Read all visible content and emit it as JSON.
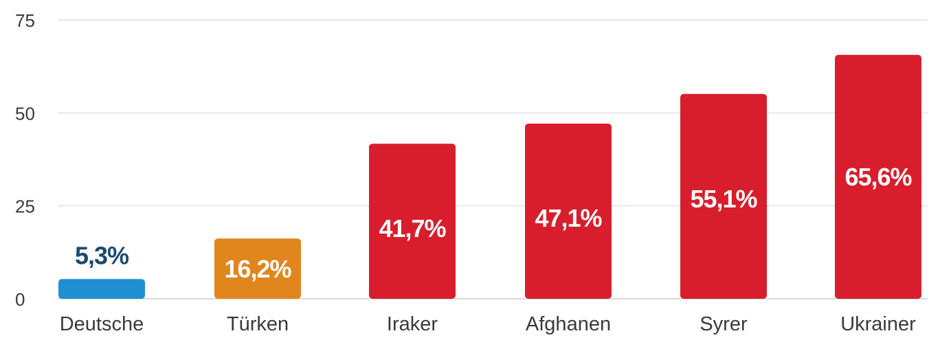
{
  "chart_data": {
    "type": "bar",
    "categories": [
      "Deutsche",
      "Türken",
      "Iraker",
      "Afghanen",
      "Syrer",
      "Ukrainer"
    ],
    "values": [
      5.3,
      16.2,
      41.7,
      47.1,
      55.1,
      65.6
    ],
    "value_labels": [
      "5,3%",
      "16,2%",
      "41,7%",
      "47,1%",
      "55,1%",
      "65,6%"
    ],
    "colors": [
      "#1f8fd1",
      "#e0861c",
      "#d81e2c",
      "#d81e2c",
      "#d81e2c",
      "#d81e2c"
    ],
    "label_colors": [
      "#1c4a6e",
      "#ffffff",
      "#ffffff",
      "#ffffff",
      "#ffffff",
      "#ffffff"
    ],
    "label_inside": [
      false,
      true,
      true,
      true,
      true,
      true
    ],
    "ylim": [
      0,
      75
    ],
    "yticks": [
      "0",
      "25",
      "50",
      "75"
    ],
    "ytick_values": [
      0,
      25,
      50,
      75
    ],
    "grid": true,
    "legend": "none"
  }
}
